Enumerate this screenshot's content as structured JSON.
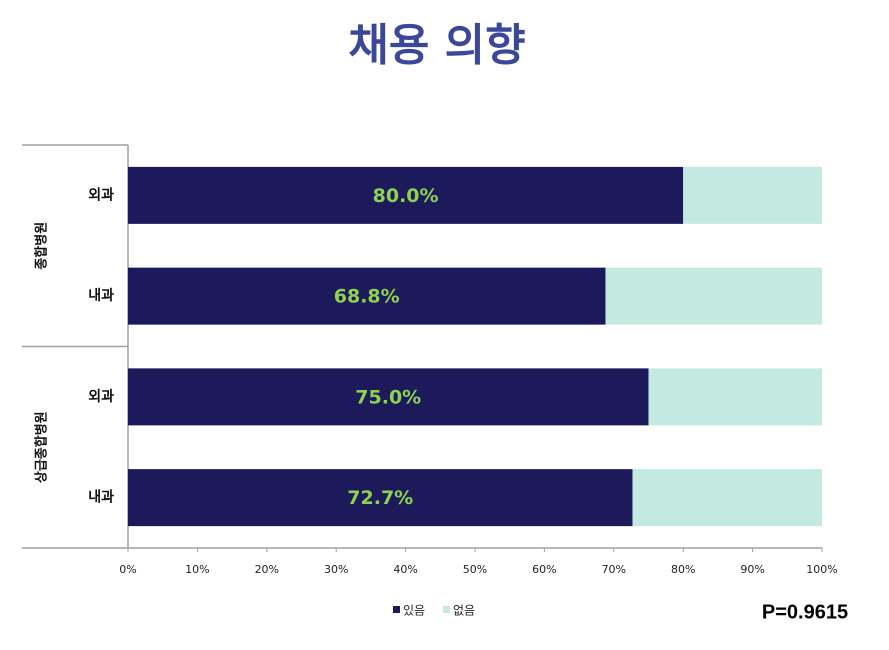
{
  "chart_data": {
    "type": "bar",
    "orientation": "horizontal",
    "stacked": true,
    "title": "채용 의향",
    "categories": [
      "외과",
      "내과",
      "외과",
      "내과"
    ],
    "groups": [
      "종합병원",
      "상급종합병원"
    ],
    "series": [
      {
        "name": "있음",
        "color": "#1c1a5a",
        "values": [
          80.0,
          68.8,
          75.0,
          72.7
        ],
        "value_labels": [
          "80.0%",
          "68.8%",
          "75.0%",
          "72.7%"
        ],
        "label_color": "#8ed24f"
      },
      {
        "name": "없음",
        "color": "#c4e9e1",
        "values": [
          20.0,
          31.2,
          25.0,
          27.3
        ]
      }
    ],
    "xlim": [
      0,
      100
    ],
    "xticks": [
      {
        "value": 0,
        "label": "0%"
      },
      {
        "value": 10,
        "label": "10%"
      },
      {
        "value": 20,
        "label": "20%"
      },
      {
        "value": 30,
        "label": "30%"
      },
      {
        "value": 40,
        "label": "40%"
      },
      {
        "value": 50,
        "label": "50%"
      },
      {
        "value": 60,
        "label": "60%"
      },
      {
        "value": 70,
        "label": "70%"
      },
      {
        "value": 80,
        "label": "80%"
      },
      {
        "value": 90,
        "label": "90%"
      },
      {
        "value": 100,
        "label": "100%"
      }
    ],
    "legend": "bottom",
    "annotation": "P=0.9615"
  }
}
